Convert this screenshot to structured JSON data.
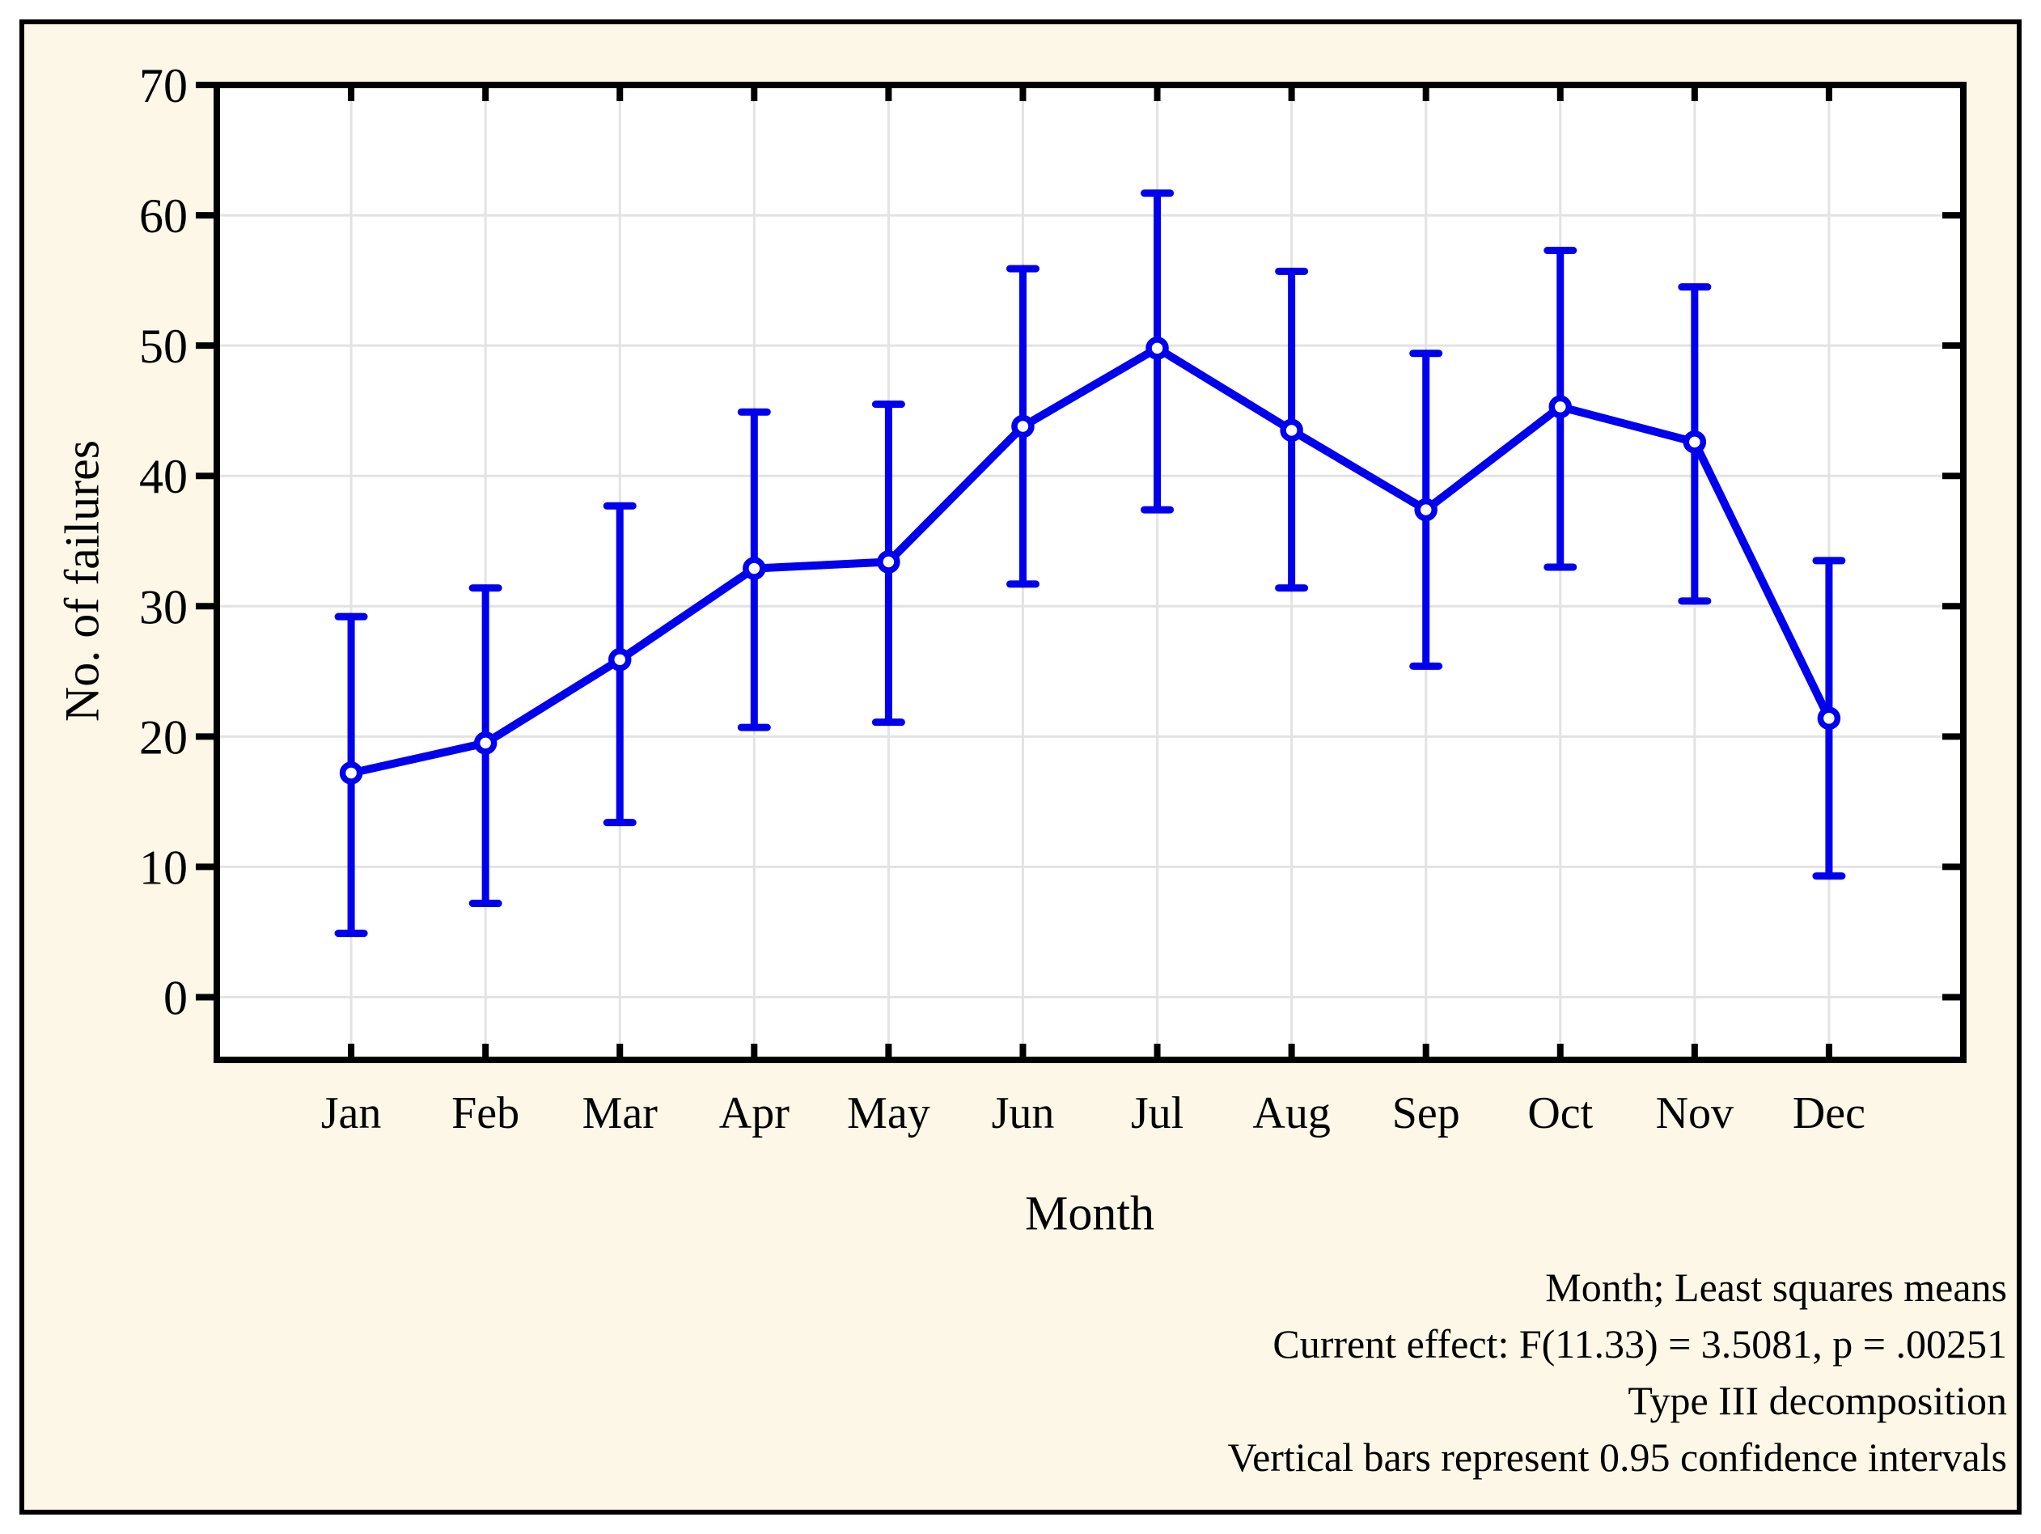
{
  "chart_data": {
    "type": "line",
    "title": "",
    "xlabel": "Month",
    "ylabel": "No. of failures",
    "categories": [
      "Jan",
      "Feb",
      "Mar",
      "Apr",
      "May",
      "Jun",
      "Jul",
      "Aug",
      "Sep",
      "Oct",
      "Nov",
      "Dec"
    ],
    "series": [
      {
        "name": "Month; Least squares means",
        "values": [
          17.2,
          19.5,
          25.9,
          32.9,
          33.4,
          43.8,
          49.8,
          43.5,
          37.4,
          45.3,
          42.6,
          21.4
        ],
        "ci_lower": [
          4.9,
          7.2,
          13.4,
          20.7,
          21.1,
          31.7,
          37.4,
          31.4,
          25.4,
          33.0,
          30.4,
          9.3
        ],
        "ci_upper": [
          29.2,
          31.4,
          37.7,
          44.9,
          45.5,
          55.9,
          61.7,
          55.7,
          49.4,
          57.3,
          54.5,
          33.5
        ]
      }
    ],
    "ylim": [
      -4.85,
      70
    ],
    "yticks": [
      0,
      10,
      20,
      30,
      40,
      50,
      60,
      70
    ],
    "grid": true,
    "legend_position": "none",
    "marker": "open-circle",
    "error_bars": "0.95 confidence intervals",
    "annotations": [
      "Month; Least squares means",
      "Current effect: F(11.33) = 3.5081, p = .00251",
      "Type III decomposition",
      "Vertical bars represent 0.95 confidence intervals"
    ],
    "colors": {
      "series": "#0000EE",
      "axis": "#000000",
      "grid": "#E3E3E3",
      "plot_background": "#FFFFFF",
      "figure_background": "#FCF7E6",
      "frame_border": "#000000"
    }
  }
}
